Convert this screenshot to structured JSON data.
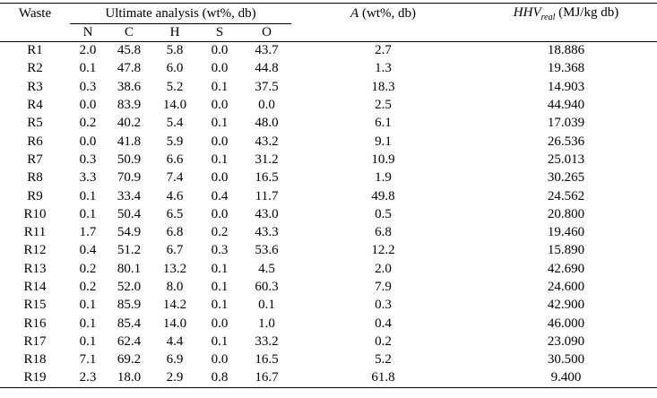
{
  "table": {
    "header": {
      "waste": "Waste",
      "ultimate": "Ultimate analysis (wt%, db)",
      "sub": [
        "N",
        "C",
        "H",
        "S",
        "O"
      ],
      "ash": {
        "symbol": "A",
        "rest": " (wt%, db)"
      },
      "hhv": {
        "symbol": "HHV",
        "subscript": "real",
        "rest": " (MJ/kg db)"
      }
    },
    "rows": [
      [
        "R1",
        "2.0",
        "45.8",
        "5.8",
        "0.0",
        "43.7",
        "2.7",
        "18.886"
      ],
      [
        "R2",
        "0.1",
        "47.8",
        "6.0",
        "0.0",
        "44.8",
        "1.3",
        "19.368"
      ],
      [
        "R3",
        "0.3",
        "38.6",
        "5.2",
        "0.1",
        "37.5",
        "18.3",
        "14.903"
      ],
      [
        "R4",
        "0.0",
        "83.9",
        "14.0",
        "0.0",
        "0.0",
        "2.5",
        "44.940"
      ],
      [
        "R5",
        "0.2",
        "40.2",
        "5.4",
        "0.1",
        "48.0",
        "6.1",
        "17.039"
      ],
      [
        "R6",
        "0.0",
        "41.8",
        "5.9",
        "0.0",
        "43.2",
        "9.1",
        "26.536"
      ],
      [
        "R7",
        "0.3",
        "50.9",
        "6.6",
        "0.1",
        "31.2",
        "10.9",
        "25.013"
      ],
      [
        "R8",
        "3.3",
        "70.9",
        "7.4",
        "0.0",
        "16.5",
        "1.9",
        "30.265"
      ],
      [
        "R9",
        "0.1",
        "33.4",
        "4.6",
        "0.4",
        "11.7",
        "49.8",
        "24.562"
      ],
      [
        "R10",
        "0.1",
        "50.4",
        "6.5",
        "0.0",
        "43.0",
        "0.5",
        "20.800"
      ],
      [
        "R11",
        "1.7",
        "54.9",
        "6.8",
        "0.2",
        "43.3",
        "6.8",
        "19.460"
      ],
      [
        "R12",
        "0.4",
        "51.2",
        "6.7",
        "0.3",
        "53.6",
        "12.2",
        "15.890"
      ],
      [
        "R13",
        "0.2",
        "80.1",
        "13.2",
        "0.1",
        "4.5",
        "2.0",
        "42.690"
      ],
      [
        "R14",
        "0.2",
        "52.0",
        "8.0",
        "0.1",
        "60.3",
        "7.9",
        "24.600"
      ],
      [
        "R15",
        "0.1",
        "85.9",
        "14.2",
        "0.1",
        "0.1",
        "0.3",
        "42.900"
      ],
      [
        "R16",
        "0.1",
        "85.4",
        "14.0",
        "0.0",
        "1.0",
        "0.4",
        "46.000"
      ],
      [
        "R17",
        "0.1",
        "62.4",
        "4.4",
        "0.1",
        "33.2",
        "0.2",
        "23.090"
      ],
      [
        "R18",
        "7.1",
        "69.2",
        "6.9",
        "0.0",
        "16.5",
        "5.2",
        "30.500"
      ],
      [
        "R19",
        "2.3",
        "18.0",
        "2.9",
        "0.8",
        "16.7",
        "61.8",
        "9.400"
      ]
    ]
  }
}
